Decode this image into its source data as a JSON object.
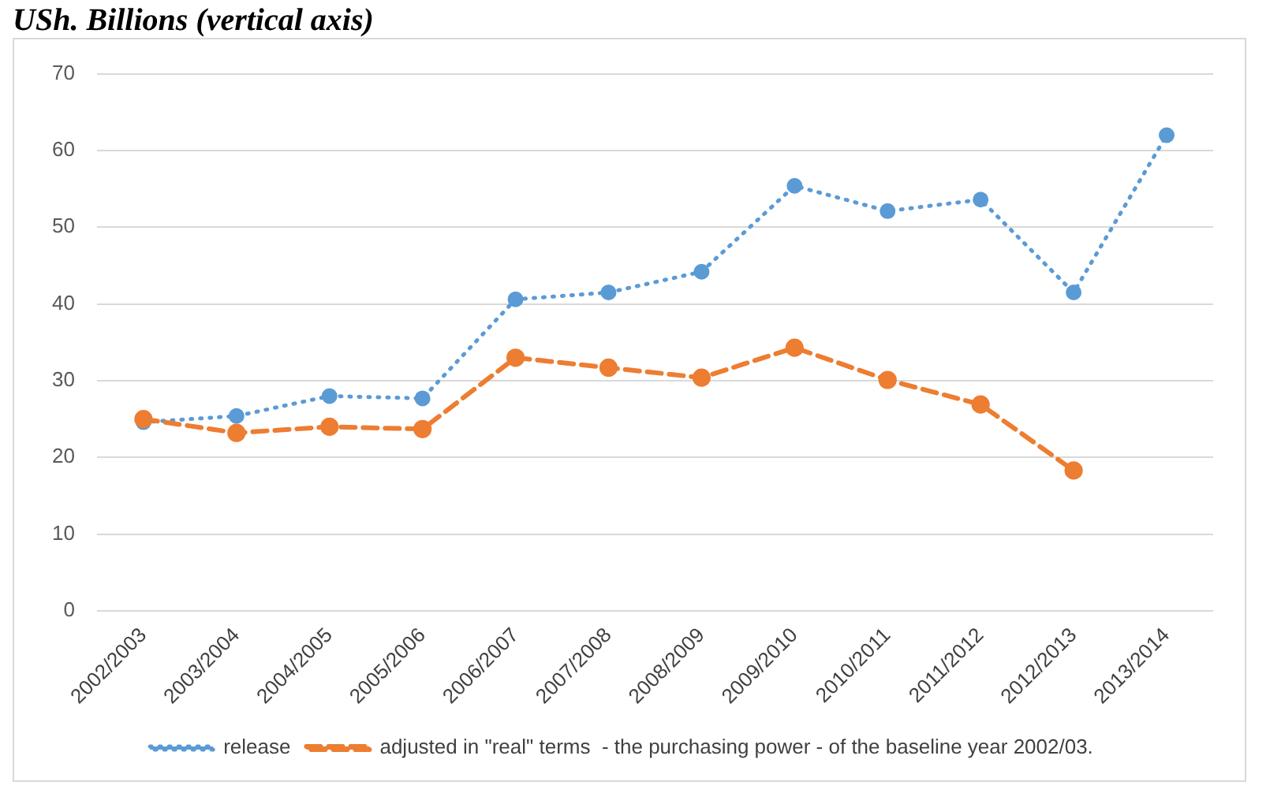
{
  "chart_data": {
    "type": "line",
    "title": "USh. Billions (vertical axis)",
    "categories": [
      "2002/2003",
      "2003/2004",
      "2004/2005",
      "2005/2006",
      "2006/2007",
      "2007/2008",
      "2008/2009",
      "2009/2010",
      "2010/2011",
      "2011/2012",
      "2012/2013",
      "2013/2014"
    ],
    "series": [
      {
        "name": "release",
        "color": "#5b9bd5",
        "line_style": "dotted",
        "values": [
          24.6,
          25.4,
          28.0,
          27.7,
          40.6,
          41.5,
          44.2,
          55.4,
          52.1,
          53.6,
          41.5,
          62.0
        ]
      },
      {
        "name": "adjusted in \"real\" terms  - the purchasing power - of the baseline year 2002/03.",
        "color": "#ed7d31",
        "line_style": "dashed",
        "values": [
          25.0,
          23.2,
          24.0,
          23.7,
          33.0,
          31.7,
          30.4,
          34.3,
          30.1,
          26.9,
          18.3,
          null
        ]
      }
    ],
    "ylim": [
      0,
      70
    ],
    "yticks": [
      0,
      10,
      20,
      30,
      40,
      50,
      60,
      70
    ],
    "grid": "y",
    "legend": "bottom",
    "marker": "circle"
  }
}
